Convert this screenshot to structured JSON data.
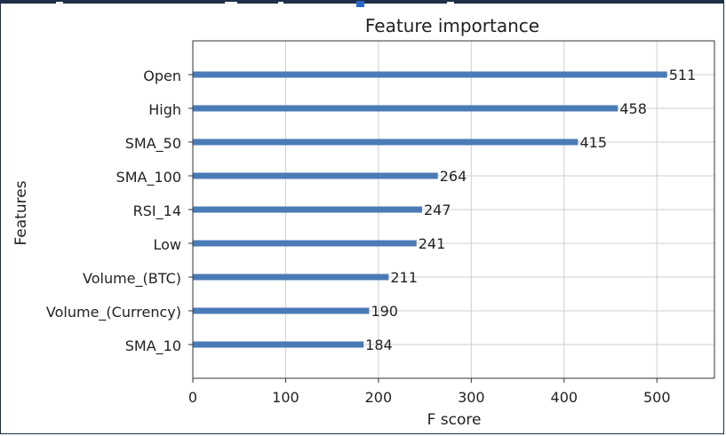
{
  "chart_data": {
    "type": "bar",
    "orientation": "horizontal",
    "title": "Feature importance",
    "xlabel": "F score",
    "ylabel": "Features",
    "categories": [
      "Open",
      "High",
      "SMA_50",
      "SMA_100",
      "RSI_14",
      "Low",
      "Volume_(BTC)",
      "Volume_(Currency)",
      "SMA_10"
    ],
    "values": [
      511,
      458,
      415,
      264,
      247,
      241,
      211,
      190,
      184
    ],
    "xlim": [
      0,
      562
    ],
    "xticks": [
      0,
      100,
      200,
      300,
      400,
      500
    ],
    "grid": true,
    "bar_color": "#4a7bb7"
  }
}
